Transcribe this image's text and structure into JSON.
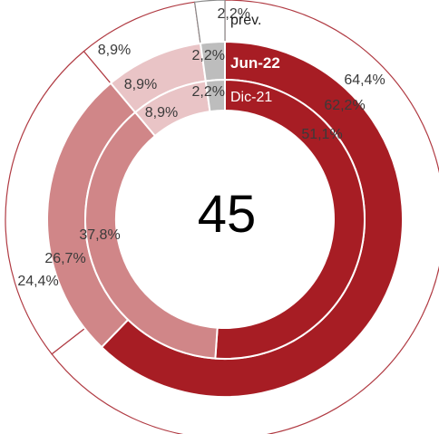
{
  "chart_data": {
    "type": "donut",
    "center_value": "45",
    "rings": [
      {
        "name": "prev.",
        "values": [
          64.4,
          24.4,
          8.9,
          2.2
        ],
        "labels": [
          "64,4%",
          "24,4%",
          "8,9%",
          "2,2%"
        ]
      },
      {
        "name": "Jun-22",
        "values": [
          62.2,
          26.7,
          8.9,
          2.2
        ],
        "labels": [
          "62,2%",
          "26,7%",
          "8,9%",
          "2,2%"
        ]
      },
      {
        "name": "Dic-21",
        "values": [
          51.1,
          37.8,
          8.9,
          2.2
        ],
        "labels": [
          "51,1%",
          "37,8%",
          "8,9%",
          "2,2%"
        ]
      }
    ],
    "category_colors": [
      "#a71d24",
      "#d08688",
      "#e9c4c6",
      "#bdbdbd"
    ],
    "outer_ring_fill": "#ffffff",
    "outer_ring_stroke": "#b03a42"
  }
}
